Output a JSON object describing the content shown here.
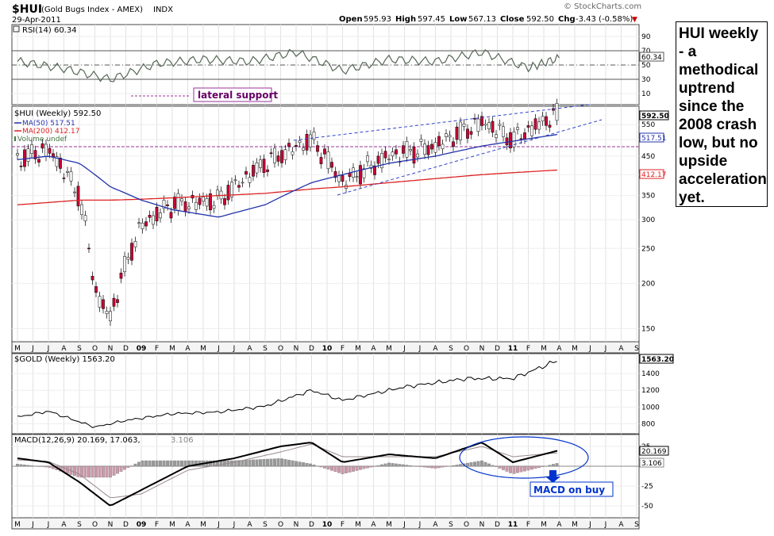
{
  "header": {
    "symbol": "$HUI",
    "name": "(Gold Bugs Index - AMEX)",
    "exchange": "INDX",
    "date": "29-Apr-2011",
    "watermark": "© StockCharts.com",
    "open_label": "Open",
    "open": "595.93",
    "high_label": "High",
    "high": "597.45",
    "low_label": "Low",
    "low": "567.13",
    "close_label": "Close",
    "close": "592.50",
    "chg_label": "Chg",
    "chg": "-3.43 (-0.58%)",
    "chg_arrow": "▼"
  },
  "rsi_panel": {
    "label": "RSI(14) 60.34",
    "current": "60.34",
    "ticks": [
      "90",
      "70",
      "50",
      "30",
      "10"
    ]
  },
  "annotations": {
    "lateral_support": "lateral support",
    "macd_on_buy": "MACD on buy",
    "note": "HUI weekly - a methodical uptrend since the 2008 crash low, but no upside acceleration yet."
  },
  "price_panel": {
    "legend": {
      "main": "$HUI (Weekly) 592.50",
      "ma50": "MA(50) 517.51",
      "ma200": "MA(200) 412.17",
      "volume": "Volume undef"
    },
    "y_ticks": [
      "550",
      "500",
      "450",
      "400",
      "350",
      "300",
      "250",
      "200",
      "150"
    ],
    "last_price_tag": "592.50",
    "ma50_tag": "517.51",
    "ma200_tag": "412.17"
  },
  "gold_panel": {
    "label": "$GOLD (Weekly) 1563.20",
    "last_tag": "1563.20",
    "y_ticks": [
      "1400",
      "1200",
      "1000",
      "800"
    ]
  },
  "macd_panel": {
    "label_main": "MACD(12,26,9) 20.169, 17.063,",
    "label_hist": "3.106",
    "macd_tag": "20.169",
    "hist_tag": "3.106",
    "y_ticks": [
      "25",
      "-25",
      "-50"
    ]
  },
  "colors": {
    "up_candle": "#ffffff",
    "down_candle": "#cc0033",
    "ma50": "#2233aa",
    "ma200": "#dd2222",
    "purple": "#993399",
    "macd_hist": "#999999",
    "macd_neg_hist": "#cc99aa",
    "blue_annot": "#0033cc"
  },
  "x_labels": [
    "M",
    "J",
    "J",
    "A",
    "S",
    "O",
    "N",
    "D",
    "09",
    "F",
    "M",
    "A",
    "M",
    "J",
    "J",
    "A",
    "S",
    "O",
    "N",
    "D",
    "10",
    "F",
    "M",
    "A",
    "M",
    "J",
    "J",
    "A",
    "S",
    "O",
    "N",
    "D",
    "11",
    "F",
    "M",
    "A",
    "M",
    "J",
    "J",
    "A",
    "S"
  ],
  "chart_data": [
    {
      "type": "line",
      "name": "rsi",
      "ylim": [
        0,
        100
      ],
      "x": [
        "2008-05",
        "2008-08",
        "2008-11",
        "2009-02",
        "2009-05",
        "2009-08",
        "2009-11",
        "2010-02",
        "2010-05",
        "2010-08",
        "2010-11",
        "2011-02",
        "2011-04"
      ],
      "series": [
        {
          "values": [
            55,
            45,
            30,
            52,
            58,
            55,
            68,
            42,
            58,
            55,
            68,
            46,
            60
          ]
        }
      ],
      "reference_lines": [
        70,
        50,
        30
      ]
    },
    {
      "type": "line",
      "name": "hui_weekly",
      "ylim": [
        140,
        600
      ],
      "x": [
        "2008-05",
        "2008-07",
        "2008-09",
        "2008-10",
        "2008-11",
        "2009-01",
        "2009-03",
        "2009-06",
        "2009-09",
        "2009-12",
        "2010-02",
        "2010-05",
        "2010-08",
        "2010-11",
        "2011-01",
        "2011-04"
      ],
      "series": [
        {
          "values": [
            440,
            470,
            350,
            190,
            160,
            290,
            330,
            340,
            430,
            500,
            380,
            450,
            480,
            560,
            500,
            592.5
          ]
        },
        {
          "name": "MA(50)",
          "values": [
            440,
            450,
            430,
            400,
            370,
            340,
            320,
            305,
            330,
            380,
            400,
            430,
            450,
            480,
            495,
            517.51
          ]
        },
        {
          "name": "MA(200)",
          "values": [
            330,
            335,
            340,
            340,
            340,
            342,
            345,
            350,
            355,
            365,
            370,
            380,
            390,
            400,
            405,
            412.17
          ]
        }
      ]
    },
    {
      "type": "line",
      "name": "gold_weekly",
      "ylim": [
        700,
        1600
      ],
      "x": [
        "2008-05",
        "2008-07",
        "2008-10",
        "2008-12",
        "2009-03",
        "2009-06",
        "2009-09",
        "2009-12",
        "2010-02",
        "2010-06",
        "2010-10",
        "2011-01",
        "2011-04"
      ],
      "series": [
        {
          "values": [
            880,
            950,
            760,
            840,
            920,
            940,
            1010,
            1200,
            1080,
            1240,
            1340,
            1340,
            1563.2
          ]
        }
      ]
    },
    {
      "type": "line",
      "name": "macd",
      "ylim": [
        -55,
        40
      ],
      "x": [
        "2008-05",
        "2008-07",
        "2008-09",
        "2008-11",
        "2009-01",
        "2009-04",
        "2009-07",
        "2009-10",
        "2009-12",
        "2010-02",
        "2010-05",
        "2010-08",
        "2010-11",
        "2011-01",
        "2011-04"
      ],
      "series": [
        {
          "values": [
            10,
            5,
            -20,
            -50,
            -30,
            0,
            10,
            25,
            30,
            5,
            15,
            10,
            30,
            5,
            20.169
          ]
        },
        {
          "values": [
            8,
            6,
            -10,
            -40,
            -35,
            -5,
            5,
            18,
            28,
            12,
            12,
            12,
            25,
            12,
            17.063
          ]
        }
      ]
    }
  ]
}
